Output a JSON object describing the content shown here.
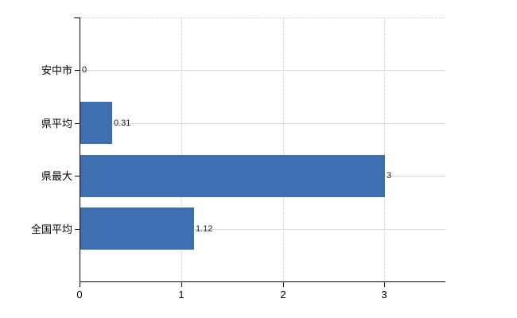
{
  "chart_data": {
    "type": "bar",
    "orientation": "horizontal",
    "title": "",
    "xlabel": "",
    "ylabel": "",
    "categories": [
      "安中市",
      "県平均",
      "県最大",
      "全国平均"
    ],
    "values": [
      0,
      0.31,
      3,
      1.12
    ],
    "value_labels": [
      "0",
      "0.31",
      "3",
      "1.12"
    ],
    "x_ticks": [
      0,
      1,
      2,
      3
    ],
    "x_tick_labels": [
      "0",
      "1",
      "2",
      "3"
    ],
    "xlim": [
      0,
      3.6
    ],
    "grid": true,
    "legend": "none",
    "colors": {
      "bar": "#3d6fb0",
      "horizontal_gridline": "#d5ddd5",
      "vertical_gridline": "#d9d2da",
      "plot_top_border": "#d6d6d6",
      "axis": "#000000",
      "text": "#000000",
      "background": "#ffffff"
    }
  }
}
